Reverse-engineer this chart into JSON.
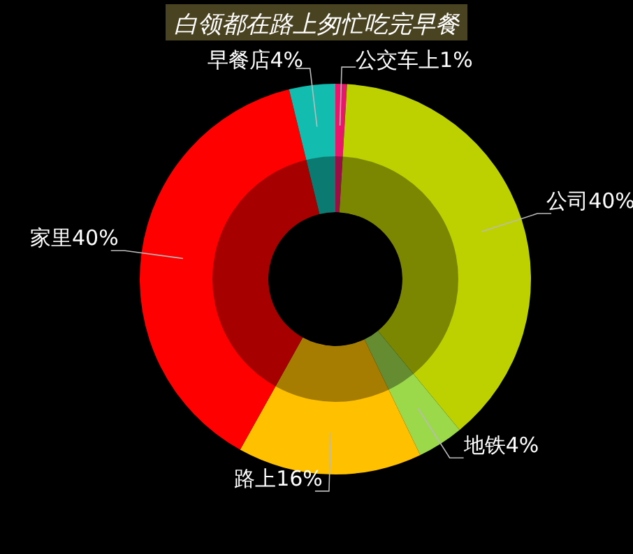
{
  "chart_data": {
    "type": "donut",
    "title": "白领都在路上匆忙吃完早餐",
    "categories": [
      "公交车上",
      "公司",
      "地铁",
      "路上",
      "家里",
      "早餐店"
    ],
    "values": [
      1,
      40,
      4,
      16,
      40,
      4
    ],
    "colors": [
      "#e8176a",
      "#bdd000",
      "#9bd84a",
      "#ffc000",
      "#ff0000",
      "#12bdb0"
    ],
    "value_labels": [
      "1%",
      "40%",
      "4%",
      "16%",
      "40%",
      "4%"
    ],
    "legend": false
  }
}
